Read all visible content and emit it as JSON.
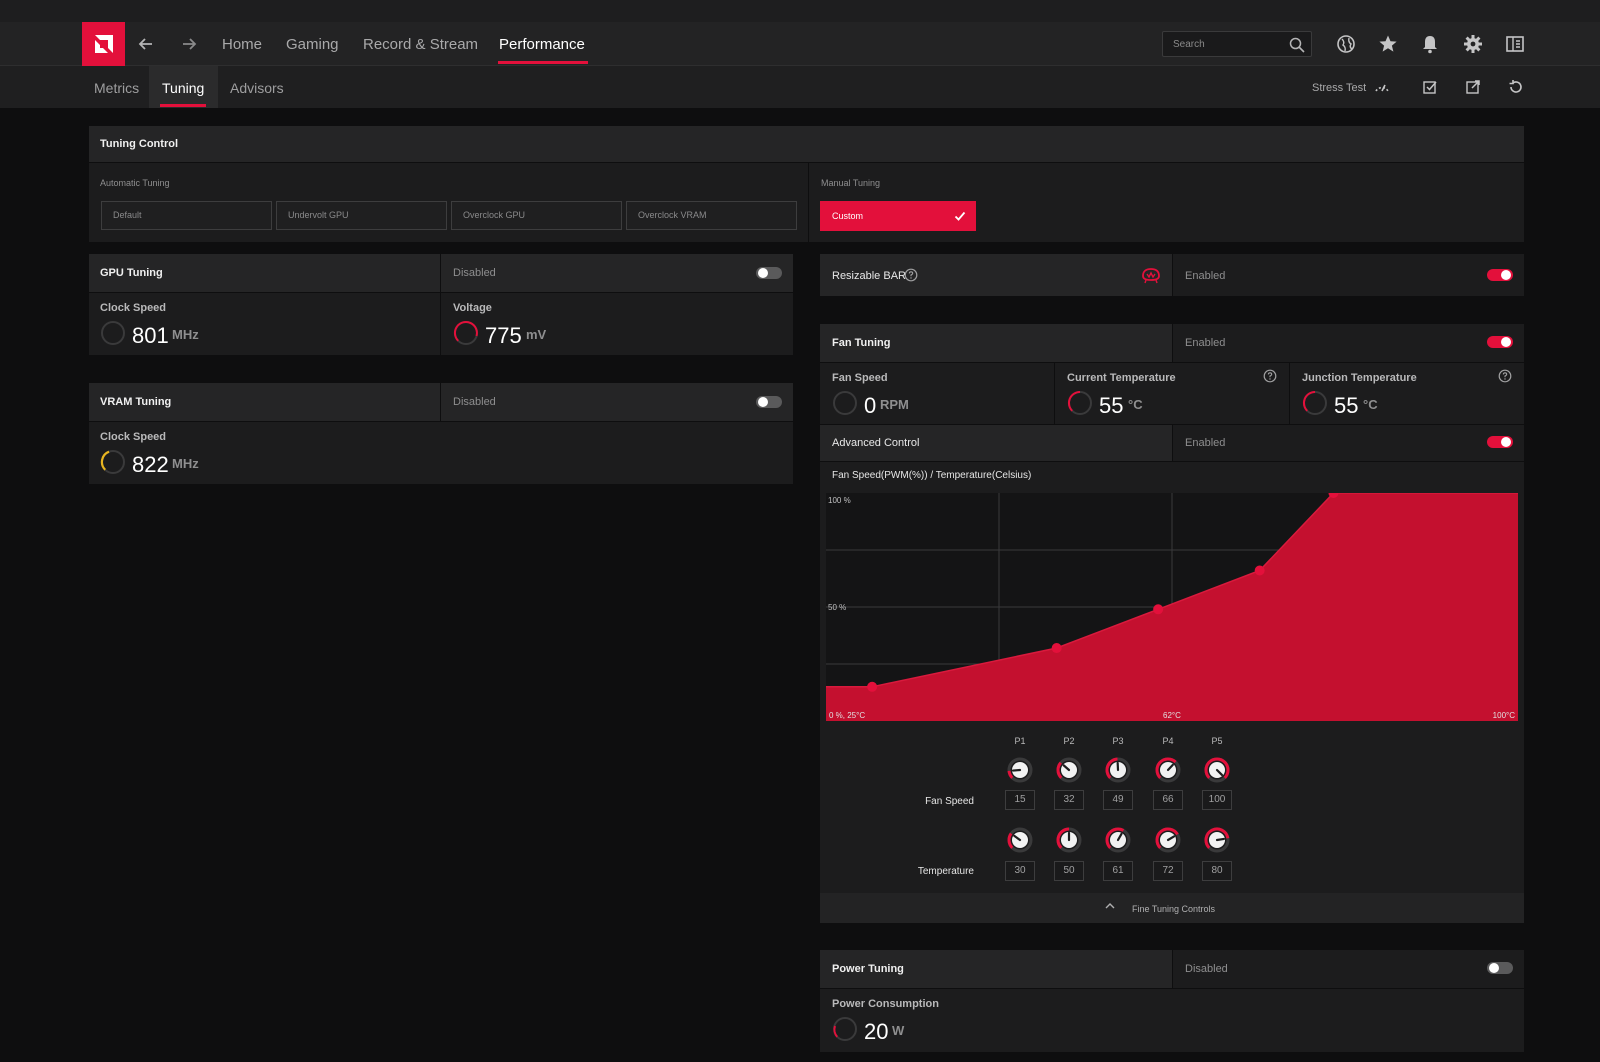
{
  "nav": {
    "tabs": [
      "Home",
      "Gaming",
      "Record & Stream",
      "Performance"
    ],
    "active_tab": "Performance",
    "search_placeholder": "Search",
    "icons": [
      "globe-icon",
      "star-icon",
      "bell-icon",
      "gear-icon",
      "sidebar-icon"
    ]
  },
  "subnav": {
    "tabs": [
      "Metrics",
      "Tuning",
      "Advisors"
    ],
    "active_tab": "Tuning",
    "stress_test_label": "Stress Test"
  },
  "tuning_control": {
    "title": "Tuning Control",
    "automatic_label": "Automatic Tuning",
    "presets": [
      "Default",
      "Undervolt GPU",
      "Overclock GPU",
      "Overclock VRAM"
    ],
    "manual_label": "Manual Tuning",
    "custom_label": "Custom"
  },
  "gpu_tuning": {
    "title": "GPU Tuning",
    "status": "Disabled",
    "clock_label": "Clock Speed",
    "clock_value": "801",
    "clock_unit": "MHz",
    "voltage_label": "Voltage",
    "voltage_value": "775",
    "voltage_unit": "mV"
  },
  "vram_tuning": {
    "title": "VRAM Tuning",
    "status": "Disabled",
    "clock_label": "Clock Speed",
    "clock_value": "822",
    "clock_unit": "MHz"
  },
  "resizable_bar": {
    "title": "Resizable BAR",
    "status": "Enabled"
  },
  "fan_tuning": {
    "title": "Fan Tuning",
    "status": "Enabled",
    "fan_speed_label": "Fan Speed",
    "fan_speed_value": "0",
    "fan_speed_unit": "RPM",
    "current_temp_label": "Current Temperature",
    "current_temp_value": "55",
    "current_temp_unit": "°C",
    "junction_temp_label": "Junction Temperature",
    "junction_temp_value": "55",
    "junction_temp_unit": "°C",
    "advanced_label": "Advanced Control",
    "advanced_status": "Enabled",
    "curve_title": "Fan Speed(PWM(%)) / Temperature(Celsius)",
    "row_fan_label": "Fan Speed",
    "row_temp_label": "Temperature",
    "fine_tuning_label": "Fine Tuning Controls"
  },
  "chart_data": {
    "type": "area",
    "title": "Fan Speed(PWM(%)) / Temperature(Celsius)",
    "y_tick_labels": [
      "100 %",
      "50 %"
    ],
    "x_tick_labels": [
      "0 %, 25°C",
      "62°C",
      "100°C"
    ],
    "xlim": [
      25,
      100
    ],
    "ylim": [
      0,
      100
    ],
    "points": [
      "P1",
      "P2",
      "P3",
      "P4",
      "P5"
    ],
    "fan_speed": [
      15,
      32,
      49,
      66,
      100
    ],
    "temperature": [
      30,
      50,
      61,
      72,
      80
    ]
  },
  "power_tuning": {
    "title": "Power Tuning",
    "status": "Disabled",
    "consumption_label": "Power Consumption",
    "consumption_value": "20",
    "consumption_unit": "W"
  },
  "colors": {
    "accent": "#e3103b",
    "gauge_yellow": "#e8b520"
  }
}
